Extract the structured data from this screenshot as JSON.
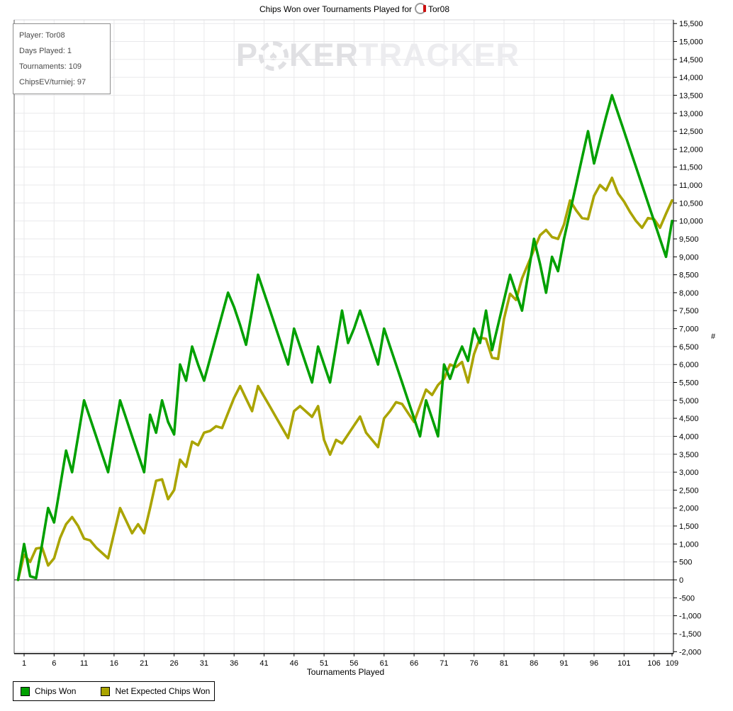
{
  "title": {
    "before_icon": "Chips Won over Tournaments Played for",
    "player": "Tor08"
  },
  "info_box": {
    "lines": [
      "Player: Tor08",
      "Days Played: 1",
      "Tournaments: 109",
      "ChipsEV/turniej: 97"
    ]
  },
  "watermark": {
    "p": "P",
    "chip_pip": "♠",
    "ker": "KER",
    "tracker": "TRACKER"
  },
  "axes": {
    "x_label": "Tournaments Played",
    "y_unit": "#"
  },
  "legend": [
    {
      "label": "Chips Won",
      "color": "#00a000"
    },
    {
      "label": "Net Expected Chips Won",
      "color": "#aaa400"
    }
  ],
  "colors": {
    "chips_won_line": "#00a000",
    "expected_line": "#aaa400",
    "gridline": "#e9e9eb",
    "axis": "#000000",
    "watermark": "#e0e0e3",
    "info_text": "#4a4a4a"
  },
  "chart_data": {
    "type": "line",
    "title": "Chips Won over Tournaments Played for Tor08",
    "xlabel": "Tournaments Played",
    "ylabel": "#",
    "x_note": "values arrays are indexed by tournaments played 0..109",
    "xlim": [
      0,
      109
    ],
    "ylim": [
      -2000,
      15500
    ],
    "y_tick_step": 500,
    "x_ticks": [
      1,
      6,
      11,
      16,
      21,
      26,
      31,
      36,
      41,
      46,
      51,
      56,
      61,
      66,
      71,
      76,
      81,
      86,
      91,
      96,
      101,
      106,
      109
    ],
    "grid": true,
    "legend_position": "bottom-left",
    "series": [
      {
        "name": "Chips Won",
        "color": "#00a000",
        "values": [
          0,
          1000,
          100,
          50,
          1000,
          2000,
          1600,
          2600,
          3600,
          3000,
          4000,
          5000,
          4500,
          4000,
          3500,
          3000,
          4000,
          5000,
          4500,
          4000,
          3500,
          3000,
          4600,
          4100,
          5000,
          4400,
          4050,
          6000,
          5550,
          6500,
          6000,
          5550,
          6160,
          6775,
          7390,
          8000,
          7600,
          7100,
          6550,
          7500,
          8500,
          8000,
          7500,
          7000,
          6500,
          6000,
          7000,
          6500,
          6000,
          5500,
          6500,
          6000,
          5500,
          6500,
          7500,
          6600,
          7000,
          7500,
          7000,
          6500,
          6000,
          7000,
          6500,
          6000,
          5500,
          5000,
          4500,
          4000,
          5000,
          4500,
          4000,
          6000,
          5600,
          6100,
          6500,
          6100,
          7000,
          6600,
          7500,
          6400,
          7100,
          7800,
          8500,
          8000,
          7500,
          8500,
          9500,
          8800,
          8000,
          9000,
          8600,
          9500,
          10250,
          11000,
          11750,
          12500,
          11600,
          12250,
          12900,
          13500,
          13000,
          12500,
          12000,
          11500,
          11000,
          10500,
          10000,
          9500,
          9000,
          10000
        ]
      },
      {
        "name": "Net Expected Chips Won",
        "color": "#aaa400",
        "values": [
          0,
          700,
          500,
          870,
          900,
          400,
          600,
          1170,
          1550,
          1750,
          1500,
          1150,
          1100,
          900,
          750,
          600,
          1300,
          2000,
          1650,
          1300,
          1550,
          1300,
          2000,
          2760,
          2800,
          2250,
          2500,
          3350,
          3150,
          3850,
          3750,
          4100,
          4150,
          4280,
          4230,
          4650,
          5070,
          5400,
          5050,
          4700,
          5400,
          5110,
          4820,
          4530,
          4240,
          3950,
          4700,
          4840,
          4690,
          4540,
          4840,
          3900,
          3490,
          3900,
          3800,
          4050,
          4300,
          4550,
          4100,
          3900,
          3700,
          4500,
          4700,
          4950,
          4900,
          4650,
          4400,
          4850,
          5300,
          5150,
          5430,
          5600,
          6000,
          5930,
          6070,
          5500,
          6290,
          6750,
          6715,
          6190,
          6155,
          7275,
          7970,
          7800,
          8400,
          8800,
          9200,
          9600,
          9750,
          9550,
          9500,
          9900,
          10570,
          10300,
          10080,
          10050,
          10700,
          11000,
          10850,
          11200,
          10770,
          10540,
          10250,
          10000,
          9810,
          10080,
          10050,
          9810,
          10200,
          10570
        ]
      }
    ]
  }
}
